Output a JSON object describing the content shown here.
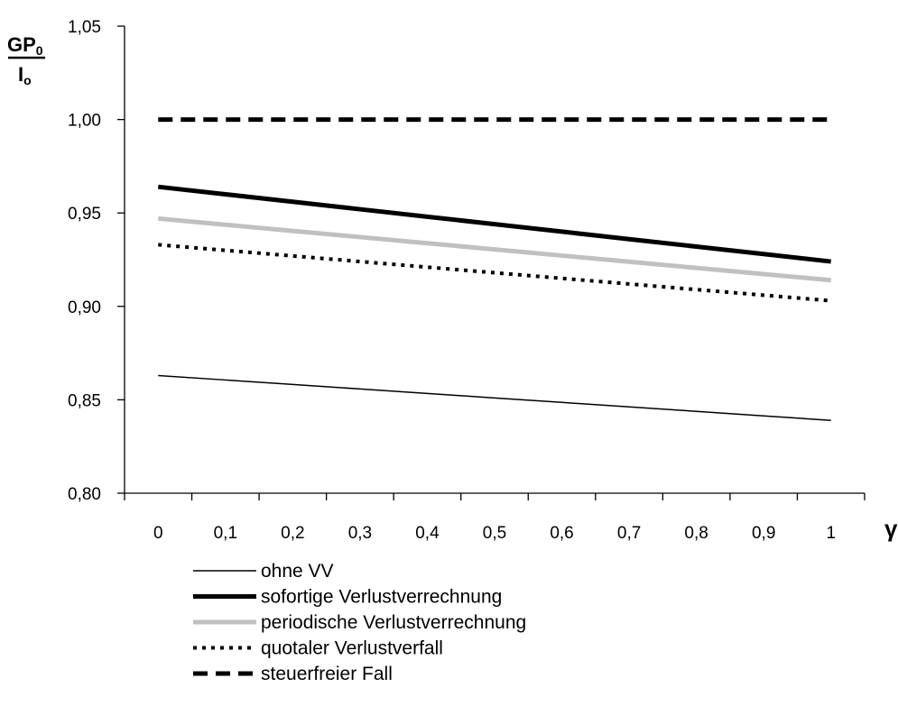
{
  "chart_data": {
    "type": "line",
    "ylabel": {
      "numerator": "GP",
      "numerator_sub": "0",
      "denominator": "I",
      "denominator_sub": "o"
    },
    "xlabel": "γ",
    "x": [
      0,
      0.1,
      0.2,
      0.3,
      0.4,
      0.5,
      0.6,
      0.7,
      0.8,
      0.9,
      1
    ],
    "x_tick_labels": [
      "0",
      "0,1",
      "0,2",
      "0,3",
      "0,4",
      "0,5",
      "0,6",
      "0,7",
      "0,8",
      "0,9",
      "1"
    ],
    "ylim": [
      0.8,
      1.05
    ],
    "y_ticks": [
      0.8,
      0.85,
      0.9,
      0.95,
      1.0,
      1.05
    ],
    "y_tick_labels": [
      "0,80",
      "0,85",
      "0,90",
      "0,95",
      "1,00",
      "1,05"
    ],
    "grid": false,
    "legend_position": "bottom",
    "series": [
      {
        "name": "ohne VV",
        "style": "solid",
        "width": 1.5,
        "color": "#000000",
        "values": [
          0.863,
          0.8606,
          0.8582,
          0.8558,
          0.8534,
          0.851,
          0.8486,
          0.8462,
          0.8438,
          0.8414,
          0.839
        ]
      },
      {
        "name": "sofortige Verlustverrechnung",
        "style": "solid",
        "width": 5,
        "color": "#000000",
        "values": [
          0.964,
          0.96,
          0.956,
          0.952,
          0.948,
          0.944,
          0.94,
          0.936,
          0.932,
          0.928,
          0.924
        ]
      },
      {
        "name": "periodische Verlustverrechnung",
        "style": "solid",
        "width": 5,
        "color": "#c0c0c0",
        "values": [
          0.947,
          0.9437,
          0.9404,
          0.9371,
          0.9338,
          0.9305,
          0.9272,
          0.9239,
          0.9206,
          0.9173,
          0.914
        ]
      },
      {
        "name": "quotaler Verlustverfall",
        "style": "dotted",
        "width": 4,
        "color": "#000000",
        "values": [
          0.933,
          0.93,
          0.927,
          0.924,
          0.921,
          0.918,
          0.915,
          0.912,
          0.909,
          0.906,
          0.903
        ]
      },
      {
        "name": "steuerfreier Fall",
        "style": "dashed",
        "width": 5,
        "color": "#000000",
        "values": [
          1.0,
          1.0,
          1.0,
          1.0,
          1.0,
          1.0,
          1.0,
          1.0,
          1.0,
          1.0,
          1.0
        ]
      }
    ]
  }
}
